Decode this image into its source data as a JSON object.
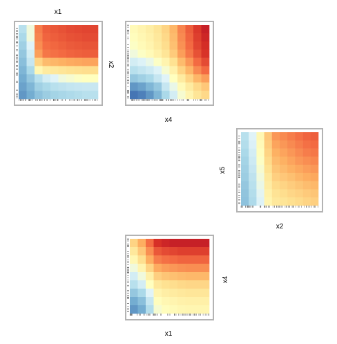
{
  "chart_data": [
    {
      "type": "heatmap",
      "xlabel": "",
      "ylabel": "",
      "top_label": "x1",
      "side_label": "",
      "rows": 9,
      "cols": 10,
      "grid": [
        [
          -0.2,
          0.0,
          0.6,
          0.7,
          0.72,
          0.74,
          0.76,
          0.77,
          0.78,
          0.78
        ],
        [
          -0.25,
          0.0,
          0.58,
          0.68,
          0.7,
          0.72,
          0.74,
          0.75,
          0.76,
          0.76
        ],
        [
          -0.3,
          -0.05,
          0.55,
          0.65,
          0.67,
          0.69,
          0.71,
          0.72,
          0.73,
          0.73
        ],
        [
          -0.35,
          -0.1,
          0.5,
          0.62,
          0.64,
          0.66,
          0.68,
          0.69,
          0.7,
          0.7
        ],
        [
          -0.4,
          -0.15,
          0.3,
          0.4,
          0.42,
          0.44,
          0.46,
          0.47,
          0.48,
          0.48
        ],
        [
          -0.45,
          -0.25,
          0.1,
          0.18,
          0.2,
          0.22,
          0.24,
          0.25,
          0.26,
          0.26
        ],
        [
          -0.5,
          -0.35,
          -0.2,
          -0.1,
          -0.05,
          0.0,
          0.02,
          0.04,
          0.05,
          0.05
        ],
        [
          -0.55,
          -0.45,
          -0.3,
          -0.25,
          -0.2,
          -0.18,
          -0.16,
          -0.15,
          -0.14,
          -0.14
        ],
        [
          -0.6,
          -0.5,
          -0.38,
          -0.32,
          -0.28,
          -0.26,
          -0.24,
          -0.22,
          -0.2,
          -0.2
        ]
      ]
    },
    {
      "type": "heatmap",
      "xlabel": "x4",
      "ylabel": "x2",
      "top_label": "",
      "side_label": "",
      "rows": 9,
      "cols": 10,
      "grid": [
        [
          0.08,
          0.12,
          0.16,
          0.22,
          0.3,
          0.42,
          0.58,
          0.7,
          0.82,
          0.9
        ],
        [
          0.06,
          0.1,
          0.14,
          0.2,
          0.28,
          0.4,
          0.56,
          0.68,
          0.8,
          0.88
        ],
        [
          0.04,
          0.08,
          0.12,
          0.18,
          0.26,
          0.38,
          0.54,
          0.66,
          0.78,
          0.86
        ],
        [
          0.0,
          0.04,
          0.08,
          0.14,
          0.22,
          0.34,
          0.5,
          0.62,
          0.74,
          0.84
        ],
        [
          -0.1,
          -0.06,
          -0.02,
          0.04,
          0.12,
          0.24,
          0.4,
          0.52,
          0.66,
          0.76
        ],
        [
          -0.2,
          -0.16,
          -0.12,
          -0.06,
          0.02,
          0.14,
          0.3,
          0.42,
          0.56,
          0.66
        ],
        [
          -0.35,
          -0.3,
          -0.25,
          -0.15,
          -0.05,
          0.05,
          0.18,
          0.3,
          0.42,
          0.5
        ],
        [
          -0.6,
          -0.55,
          -0.45,
          -0.35,
          -0.15,
          -0.02,
          0.08,
          0.18,
          0.28,
          0.35
        ],
        [
          -0.75,
          -0.7,
          -0.6,
          -0.45,
          -0.25,
          -0.1,
          0.02,
          0.12,
          0.22,
          0.28
        ]
      ]
    },
    {
      "type": "heatmap",
      "xlabel": "x2",
      "ylabel": "x5",
      "top_label": "",
      "side_label": "",
      "rows": 9,
      "cols": 10,
      "grid": [
        [
          -0.2,
          -0.05,
          0.1,
          0.35,
          0.52,
          0.56,
          0.6,
          0.64,
          0.68,
          0.7
        ],
        [
          -0.22,
          -0.07,
          0.08,
          0.33,
          0.48,
          0.52,
          0.56,
          0.6,
          0.64,
          0.66
        ],
        [
          -0.25,
          -0.1,
          0.06,
          0.3,
          0.44,
          0.48,
          0.52,
          0.56,
          0.6,
          0.62
        ],
        [
          -0.28,
          -0.12,
          0.04,
          0.27,
          0.4,
          0.44,
          0.48,
          0.52,
          0.55,
          0.57
        ],
        [
          -0.3,
          -0.15,
          0.02,
          0.24,
          0.36,
          0.4,
          0.44,
          0.47,
          0.5,
          0.52
        ],
        [
          -0.32,
          -0.18,
          0.0,
          0.2,
          0.32,
          0.35,
          0.38,
          0.42,
          0.45,
          0.47
        ],
        [
          -0.35,
          -0.2,
          -0.02,
          0.17,
          0.27,
          0.3,
          0.33,
          0.36,
          0.39,
          0.41
        ],
        [
          -0.37,
          -0.22,
          -0.04,
          0.14,
          0.23,
          0.26,
          0.29,
          0.31,
          0.34,
          0.36
        ],
        [
          -0.38,
          -0.24,
          -0.06,
          0.12,
          0.2,
          0.22,
          0.25,
          0.27,
          0.3,
          0.32
        ]
      ]
    },
    {
      "type": "heatmap",
      "xlabel": "x1",
      "ylabel": "",
      "top_label": "",
      "side_label": "x4",
      "rows": 9,
      "cols": 10,
      "grid": [
        [
          0.3,
          0.45,
          0.65,
          0.85,
          0.88,
          0.9,
          0.9,
          0.9,
          0.9,
          0.9
        ],
        [
          0.2,
          0.35,
          0.55,
          0.72,
          0.76,
          0.78,
          0.8,
          0.8,
          0.8,
          0.8
        ],
        [
          0.1,
          0.25,
          0.45,
          0.6,
          0.64,
          0.66,
          0.68,
          0.68,
          0.68,
          0.68
        ],
        [
          0.0,
          0.12,
          0.3,
          0.46,
          0.5,
          0.52,
          0.54,
          0.55,
          0.55,
          0.55
        ],
        [
          -0.1,
          0.0,
          0.15,
          0.32,
          0.36,
          0.38,
          0.4,
          0.41,
          0.41,
          0.41
        ],
        [
          -0.2,
          -0.1,
          0.05,
          0.2,
          0.24,
          0.26,
          0.28,
          0.29,
          0.29,
          0.29
        ],
        [
          -0.35,
          -0.25,
          -0.05,
          0.12,
          0.16,
          0.18,
          0.2,
          0.21,
          0.21,
          0.21
        ],
        [
          -0.5,
          -0.4,
          -0.15,
          0.06,
          0.1,
          0.12,
          0.14,
          0.15,
          0.15,
          0.15
        ],
        [
          -0.6,
          -0.5,
          -0.22,
          0.02,
          0.06,
          0.08,
          0.1,
          0.11,
          0.11,
          0.11
        ]
      ]
    }
  ]
}
